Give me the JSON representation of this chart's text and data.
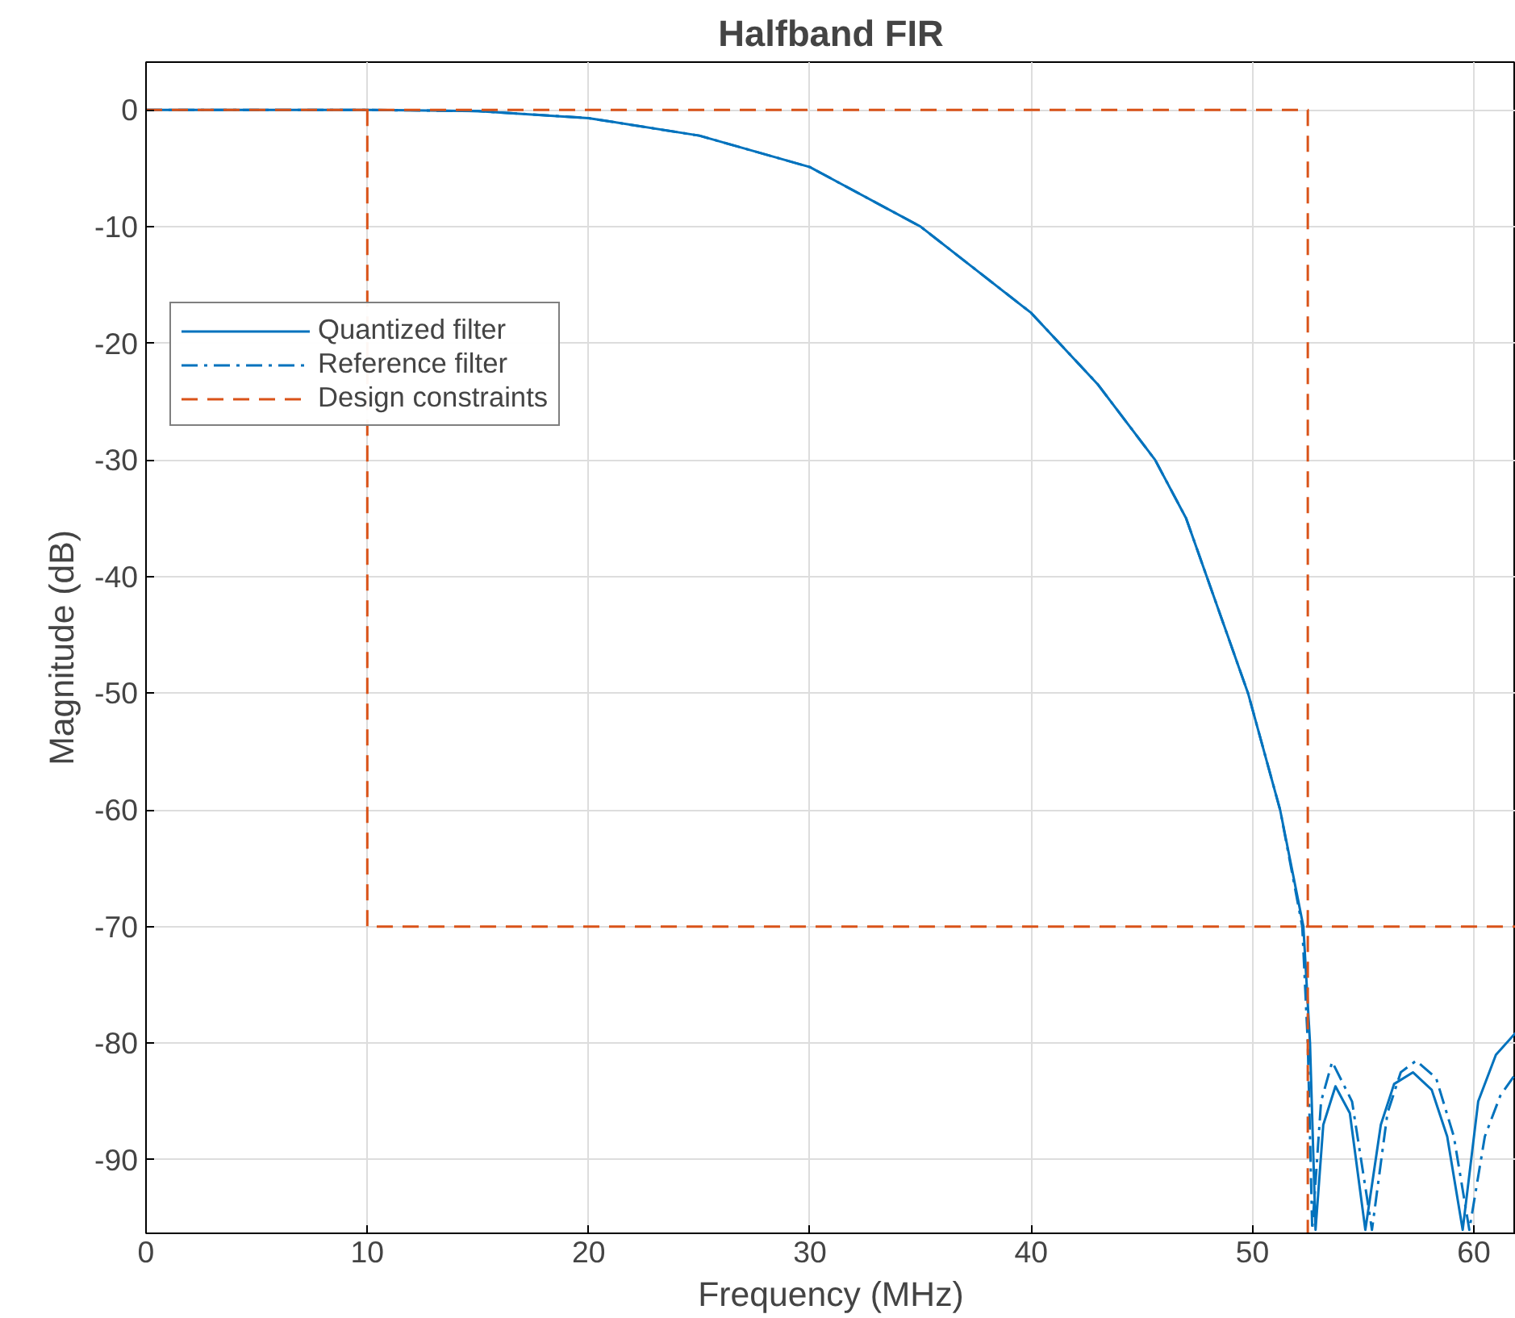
{
  "chart_data": {
    "type": "line",
    "title": "Halfband FIR",
    "xlabel": "Frequency (MHz)",
    "ylabel": "Magnitude (dB)",
    "xlim": [
      0,
      61.9
    ],
    "ylim": [
      -96.3,
      4.1
    ],
    "xticks": [
      0,
      10,
      20,
      30,
      40,
      50,
      60
    ],
    "yticks": [
      0,
      -10,
      -20,
      -30,
      -40,
      -50,
      -60,
      -70,
      -80,
      -90
    ],
    "grid": true,
    "legend": "top left",
    "series": [
      {
        "name": "Quantized filter",
        "color": "#0072bd",
        "line_style": "solid",
        "x": [
          0,
          10,
          15,
          20,
          25,
          30,
          35,
          40,
          43,
          45.6,
          47,
          49.8,
          51.25,
          52.3,
          52.6,
          52.85,
          53.2,
          53.75,
          54.4,
          55.1,
          55.8,
          56.4,
          57.25,
          58.1,
          58.8,
          59.5,
          60.2,
          61,
          61.9
        ],
        "values": [
          0,
          0,
          -0.1,
          -0.7,
          -2.2,
          -4.9,
          -10,
          -17.4,
          -23.5,
          -30,
          -35,
          -50,
          -60,
          -70,
          -80,
          -96,
          -87,
          -83.7,
          -86,
          -96,
          -87,
          -83.5,
          -82.5,
          -84,
          -88,
          -96,
          -85,
          -81,
          -79.1
        ]
      },
      {
        "name": "Reference filter",
        "color": "#0072bd",
        "line_style": "dashdot",
        "x": [
          0,
          10,
          15,
          20,
          25,
          30,
          35,
          40,
          43,
          45.6,
          47,
          49.8,
          51.25,
          52.25,
          52.5,
          52.7,
          53.1,
          53.6,
          54.5,
          55.4,
          56.1,
          56.7,
          57.4,
          58.3,
          59.1,
          59.8,
          60.5,
          61.2,
          61.9
        ],
        "values": [
          0,
          0,
          -0.1,
          -0.7,
          -2.2,
          -4.9,
          -10,
          -17.4,
          -23.5,
          -30,
          -35,
          -50,
          -60,
          -70,
          -80,
          -96,
          -85,
          -81.6,
          -85,
          -96,
          -86,
          -82.5,
          -81.5,
          -83,
          -88,
          -96,
          -88,
          -84.5,
          -82.6
        ]
      },
      {
        "name": "Design constraints",
        "color": "#d95319",
        "line_style": "dashed",
        "x": [
          0,
          52.5,
          52.5
        ],
        "values": [
          0,
          0,
          -96.3
        ]
      },
      {
        "color": "#d95319",
        "line_style": "dashed",
        "x": [
          10,
          10,
          61.9
        ],
        "values": [
          0,
          -70,
          -70
        ]
      }
    ]
  }
}
